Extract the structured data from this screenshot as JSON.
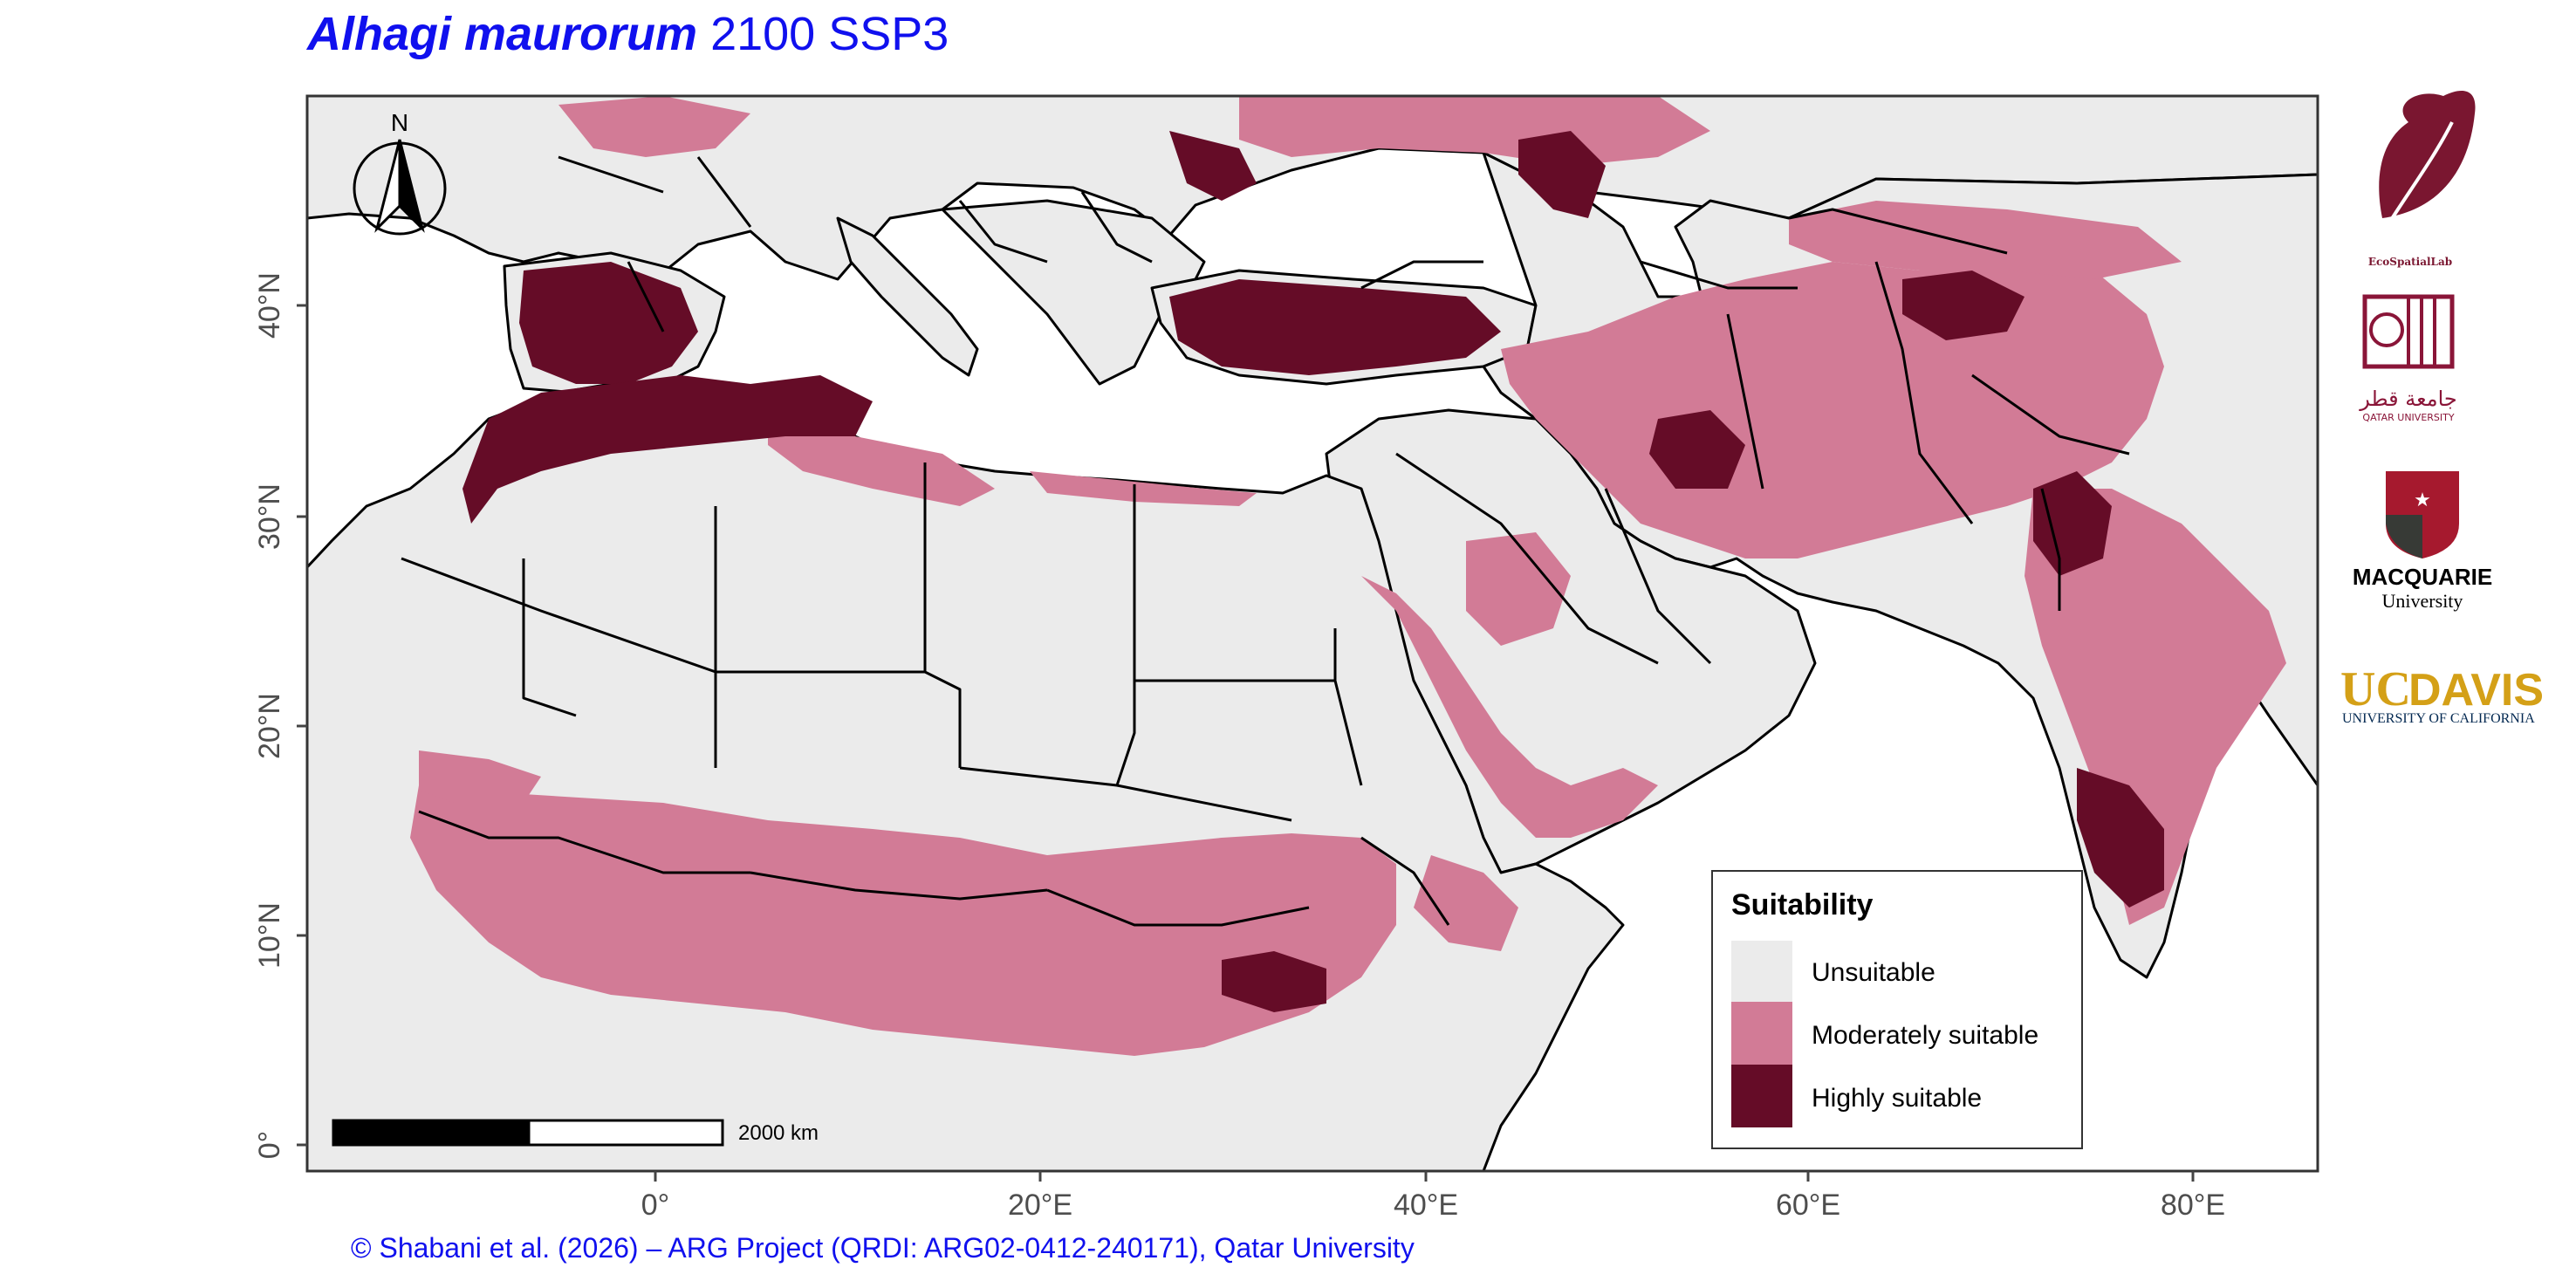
{
  "title": {
    "species": "Alhagi maurorum",
    "scenario": "2100 SSP3"
  },
  "credit": "© Shabani et al. (2026) – ARG Project (QRDI: ARG02-0412-240171), Qatar University",
  "map": {
    "north_arrow_label": "N",
    "scale_bar_label": "2000 km",
    "lat_ticks": [
      "0°",
      "10°N",
      "20°N",
      "30°N",
      "40°N"
    ],
    "lon_ticks": [
      "0°",
      "20°E",
      "40°E",
      "60°E",
      "80°E"
    ],
    "colors": {
      "unsuitable": "#ebebeb",
      "moderate": "#d27b96",
      "high": "#650c27",
      "sea": "#ffffff",
      "border": "#000000"
    }
  },
  "legend": {
    "title": "Suitability",
    "items": [
      {
        "label": "Unsuitable",
        "color": "#ebebeb"
      },
      {
        "label": "Moderately suitable",
        "color": "#d27b96"
      },
      {
        "label": "Highly suitable",
        "color": "#650c27"
      }
    ]
  },
  "logos": {
    "ecospatial": "EcoSpatialLab",
    "qatar_arabic": "جامعة قطر",
    "qatar_english": "QATAR UNIVERSITY",
    "macquarie_name": "MACQUARIE",
    "macquarie_sub": "University",
    "ucdavis_uc": "UC",
    "ucdavis_davis": "DAVIS",
    "ucdavis_sub": "UNIVERSITY OF CALIFORNIA"
  }
}
